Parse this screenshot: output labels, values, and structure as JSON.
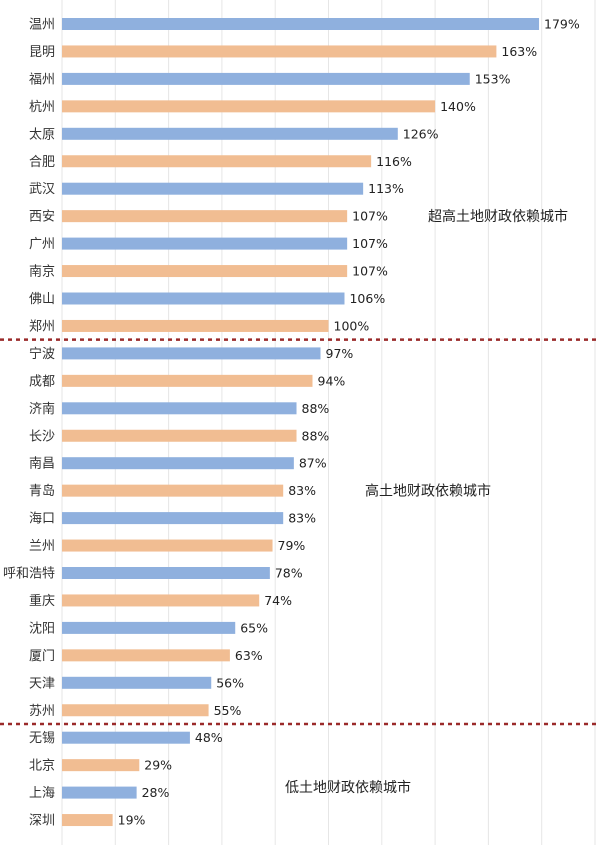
{
  "chart_data": {
    "type": "bar",
    "orientation": "horizontal",
    "title": "",
    "xlabel": "",
    "ylabel": "",
    "xlim": [
      0,
      200
    ],
    "grid": true,
    "value_suffix": "%",
    "colors": {
      "blue": "#8fb0de",
      "orange": "#f1bd92",
      "divider": "#9a2a2a"
    },
    "categories": [
      "温州",
      "昆明",
      "福州",
      "杭州",
      "太原",
      "合肥",
      "武汉",
      "西安",
      "广州",
      "南京",
      "佛山",
      "郑州",
      "宁波",
      "成都",
      "济南",
      "长沙",
      "南昌",
      "青岛",
      "海口",
      "兰州",
      "呼和浩特",
      "重庆",
      "沈阳",
      "厦门",
      "天津",
      "苏州",
      "无锡",
      "北京",
      "上海",
      "深圳"
    ],
    "values": [
      179,
      163,
      153,
      140,
      126,
      116,
      113,
      107,
      107,
      107,
      106,
      100,
      97,
      94,
      88,
      88,
      87,
      83,
      83,
      79,
      78,
      74,
      65,
      63,
      56,
      55,
      48,
      29,
      28,
      19
    ],
    "bar_colors": [
      "blue",
      "orange",
      "blue",
      "orange",
      "blue",
      "orange",
      "blue",
      "orange",
      "blue",
      "orange",
      "blue",
      "orange",
      "blue",
      "orange",
      "blue",
      "orange",
      "blue",
      "orange",
      "blue",
      "orange",
      "blue",
      "orange",
      "blue",
      "orange",
      "blue",
      "orange",
      "blue",
      "orange",
      "blue",
      "orange"
    ],
    "groups": [
      {
        "label": "超高土地财政依赖城市",
        "start": 0,
        "end": 11
      },
      {
        "label": "高土地财政依赖城市",
        "start": 12,
        "end": 25
      },
      {
        "label": "低土地财政依赖城市",
        "start": 26,
        "end": 29
      }
    ]
  }
}
